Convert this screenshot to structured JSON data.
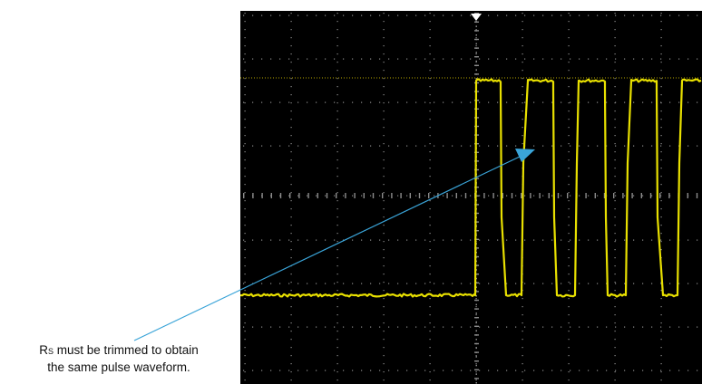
{
  "annotation": {
    "caption_symbol_main": "R",
    "caption_symbol_sub": "S",
    "caption_line1_rest": " must be trimmed to obtain",
    "caption_line2": "the same pulse waveform."
  },
  "scope": {
    "screen_color": "#000000",
    "grid_color": "#8c8c8c",
    "trace_color": "#e8e000",
    "arrow_color": "#3aa4d8",
    "h_divisions": 10,
    "v_divisions": 8,
    "trigger_marker_icon": "down-triangle-icon",
    "trigger_marker_position_div": 5
  }
}
